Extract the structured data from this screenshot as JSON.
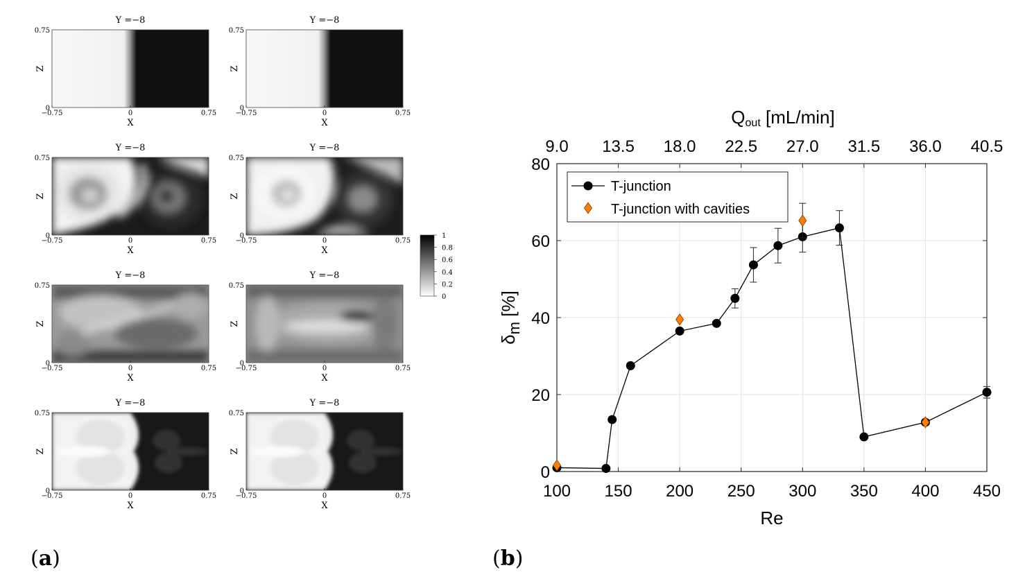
{
  "panel_labels": {
    "a": "a",
    "b": "b"
  },
  "panel_a": {
    "subplot_title": "Y =−8",
    "xlabel": "X",
    "ylabel": "Z",
    "x_ticks": [
      "−0.75",
      "0",
      "0.75"
    ],
    "y_ticks": [
      "0",
      "0.75"
    ],
    "colorbar_ticks": [
      "1",
      "0.8",
      "0.6",
      "0.4",
      "0.2",
      "0"
    ],
    "colorbar_range": [
      0,
      1
    ],
    "colormap": [
      "#ffffff",
      "#000000"
    ],
    "grid": {
      "rows": 4,
      "cols": 2
    }
  },
  "chart_data": {
    "type": "line",
    "xlabel": "Re",
    "ylabel": "δ",
    "ylabel_subscript": "m",
    "ylabel_unit": "[%]",
    "xlim": [
      100,
      450
    ],
    "ylim": [
      0,
      80
    ],
    "x_ticks": [
      "100",
      "150",
      "200",
      "250",
      "300",
      "350",
      "400",
      "450"
    ],
    "y_ticks": [
      "0",
      "20",
      "40",
      "60",
      "80"
    ],
    "top_axis": {
      "label_main": "Q",
      "label_sub": "out",
      "label_unit": "[mL/min]",
      "ticks": [
        "9.0",
        "13.5",
        "18.0",
        "22.5",
        "27.0",
        "31.5",
        "36.0",
        "40.5"
      ]
    },
    "grid": true,
    "legend_position": "top-left",
    "series": [
      {
        "name": "T-junction",
        "color": "#000000",
        "marker": "circle",
        "line": true,
        "x": [
          100,
          140,
          145,
          160,
          200,
          230,
          245,
          260,
          280,
          300,
          330,
          350,
          400,
          450
        ],
        "y": [
          1.0,
          0.8,
          13.5,
          27.5,
          36.5,
          38.5,
          45.0,
          53.7,
          58.7,
          61.0,
          63.3,
          9.0,
          12.8,
          20.6
        ],
        "err": [
          0,
          0,
          0,
          0,
          0,
          0,
          2.5,
          4.5,
          4.5,
          4.0,
          4.5,
          0,
          0,
          1.5
        ]
      },
      {
        "name": "T-junction with cavities",
        "color": "#ff8000",
        "marker": "diamond",
        "line": false,
        "x": [
          100,
          200,
          300,
          400
        ],
        "y": [
          1.6,
          39.5,
          65.2,
          12.8
        ],
        "err": [
          0,
          0,
          4.5,
          0
        ]
      }
    ]
  }
}
